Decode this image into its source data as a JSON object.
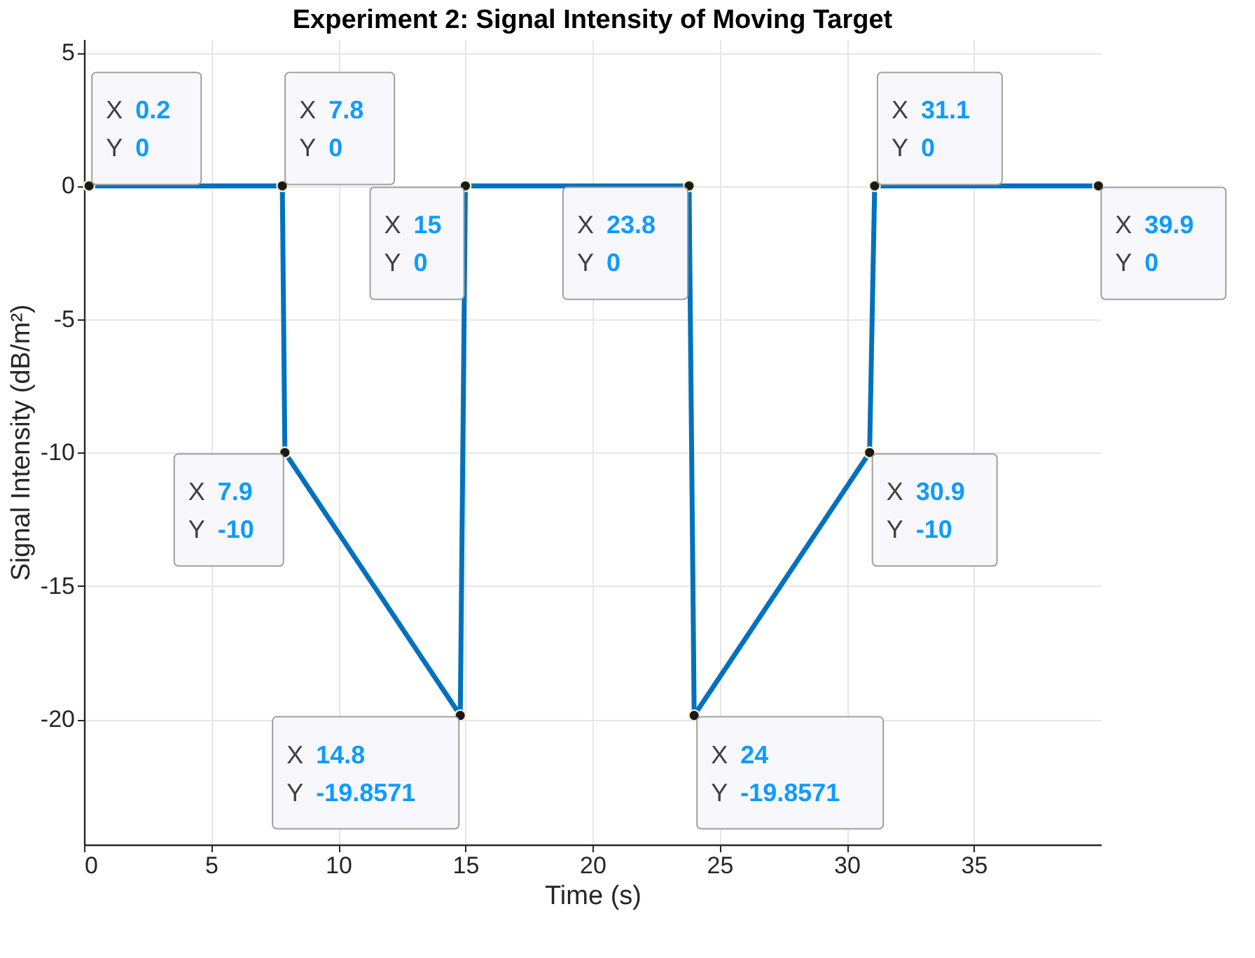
{
  "chart_data": {
    "type": "line",
    "title": "Experiment 2: Signal Intensity of Moving Target",
    "xlabel": "Time (s)",
    "ylabel": "Signal Intensity (dB/m²)",
    "x": [
      0.2,
      7.8,
      7.9,
      14.8,
      15,
      23.8,
      24,
      30.9,
      31.1,
      39.9
    ],
    "series": [
      {
        "color": "#0072bd",
        "values": [
          0,
          0,
          -10,
          -19.8571,
          0,
          0,
          -19.8571,
          -10,
          0,
          0
        ]
      }
    ],
    "xlim": [
      0,
      40
    ],
    "xticks": [
      0,
      5,
      10,
      15,
      20,
      25,
      30,
      35
    ],
    "ylim": [
      -24.7,
      5.5
    ],
    "yticks": [
      -20,
      -15,
      -10,
      -5,
      0,
      5
    ],
    "grid": true,
    "marker": "circle",
    "line_style": "solid",
    "annotations": [
      {
        "text": "X 0.2\nY 0",
        "x": 0.2,
        "y": 0
      },
      {
        "text": "X 7.8\nY 0",
        "x": 7.8,
        "y": 0
      },
      {
        "text": "X 7.9\nY -10",
        "x": 7.9,
        "y": -10
      },
      {
        "text": "X 14.8\nY -19.8571",
        "x": 14.8,
        "y": -19.8571
      },
      {
        "text": "X 15\nY 0",
        "x": 15,
        "y": 0
      },
      {
        "text": "X 23.8\nY 0",
        "x": 23.8,
        "y": 0
      },
      {
        "text": "X 24\nY -19.8571",
        "x": 24,
        "y": -19.8571
      },
      {
        "text": "X 30.9\nY -10",
        "x": 30.9,
        "y": -10
      },
      {
        "text": "X 31.1\nY 0",
        "x": 31.1,
        "y": 0
      },
      {
        "text": "X 39.9\nY 0",
        "x": 39.9,
        "y": 0
      }
    ]
  }
}
